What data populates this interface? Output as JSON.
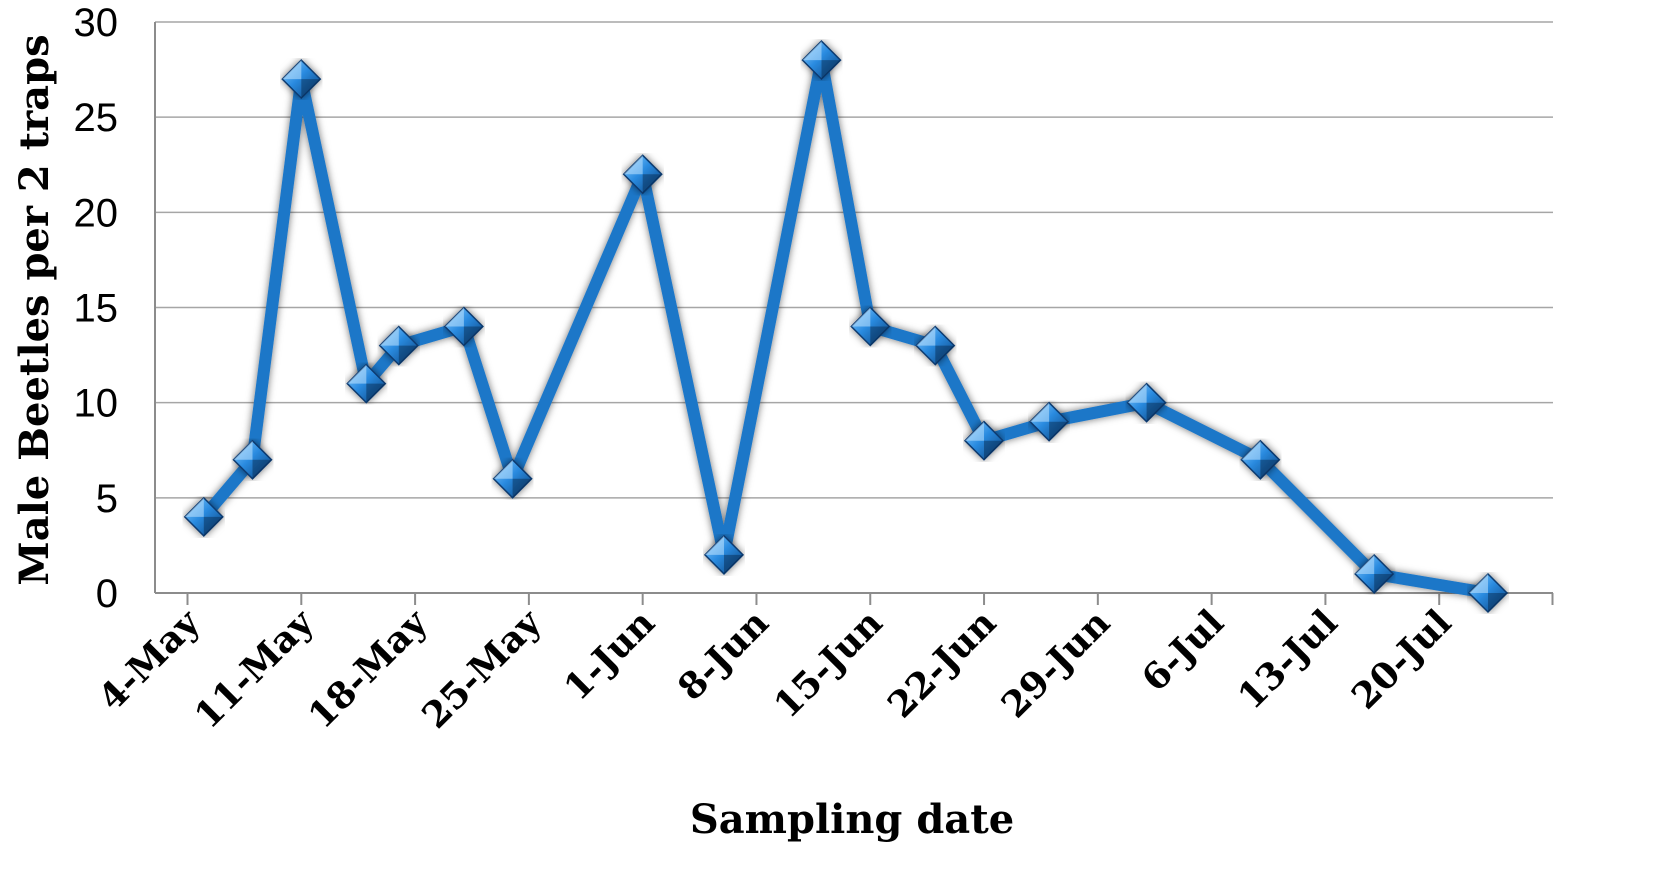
{
  "chart_data": {
    "type": "line",
    "xlabel": "Sampling date",
    "ylabel": "Male Beetles per 2 traps",
    "ylim": [
      0,
      30
    ],
    "yticks": [
      "0",
      "5",
      "10",
      "15",
      "20",
      "25",
      "30"
    ],
    "xlim": [
      "2-May",
      "27-Jul"
    ],
    "xticks": [
      {
        "label": "4-May",
        "date": "2011-05-04"
      },
      {
        "label": "11-May",
        "date": "2011-05-11"
      },
      {
        "label": "18-May",
        "date": "2011-05-18"
      },
      {
        "label": "25-May",
        "date": "2011-05-25"
      },
      {
        "label": "1-Jun",
        "date": "2011-06-01"
      },
      {
        "label": "8-Jun",
        "date": "2011-06-08"
      },
      {
        "label": "15-Jun",
        "date": "2011-06-15"
      },
      {
        "label": "22-Jun",
        "date": "2011-06-22"
      },
      {
        "label": "29-Jun",
        "date": "2011-06-29"
      },
      {
        "label": "6-Jul",
        "date": "2011-07-06"
      },
      {
        "label": "13-Jul",
        "date": "2011-07-13"
      },
      {
        "label": "20-Jul",
        "date": "2011-07-20"
      }
    ],
    "grid": "horizontal",
    "legend": "none",
    "series": [
      {
        "color": "#1f77c8",
        "marker": "diamond",
        "points": [
          {
            "date": "2011-05-05",
            "y": 4
          },
          {
            "date": "2011-05-08",
            "y": 7
          },
          {
            "date": "2011-05-11",
            "y": 27
          },
          {
            "date": "2011-05-15",
            "y": 11
          },
          {
            "date": "2011-05-17",
            "y": 13
          },
          {
            "date": "2011-05-21",
            "y": 14
          },
          {
            "date": "2011-05-24",
            "y": 6
          },
          {
            "date": "2011-06-01",
            "y": 22
          },
          {
            "date": "2011-06-06",
            "y": 2
          },
          {
            "date": "2011-06-12",
            "y": 28
          },
          {
            "date": "2011-06-15",
            "y": 14
          },
          {
            "date": "2011-06-19",
            "y": 13
          },
          {
            "date": "2011-06-22",
            "y": 8
          },
          {
            "date": "2011-06-26",
            "y": 9
          },
          {
            "date": "2011-07-02",
            "y": 10
          },
          {
            "date": "2011-07-09",
            "y": 7
          },
          {
            "date": "2011-07-16",
            "y": 1
          },
          {
            "date": "2011-07-23",
            "y": 0
          }
        ]
      }
    ]
  }
}
